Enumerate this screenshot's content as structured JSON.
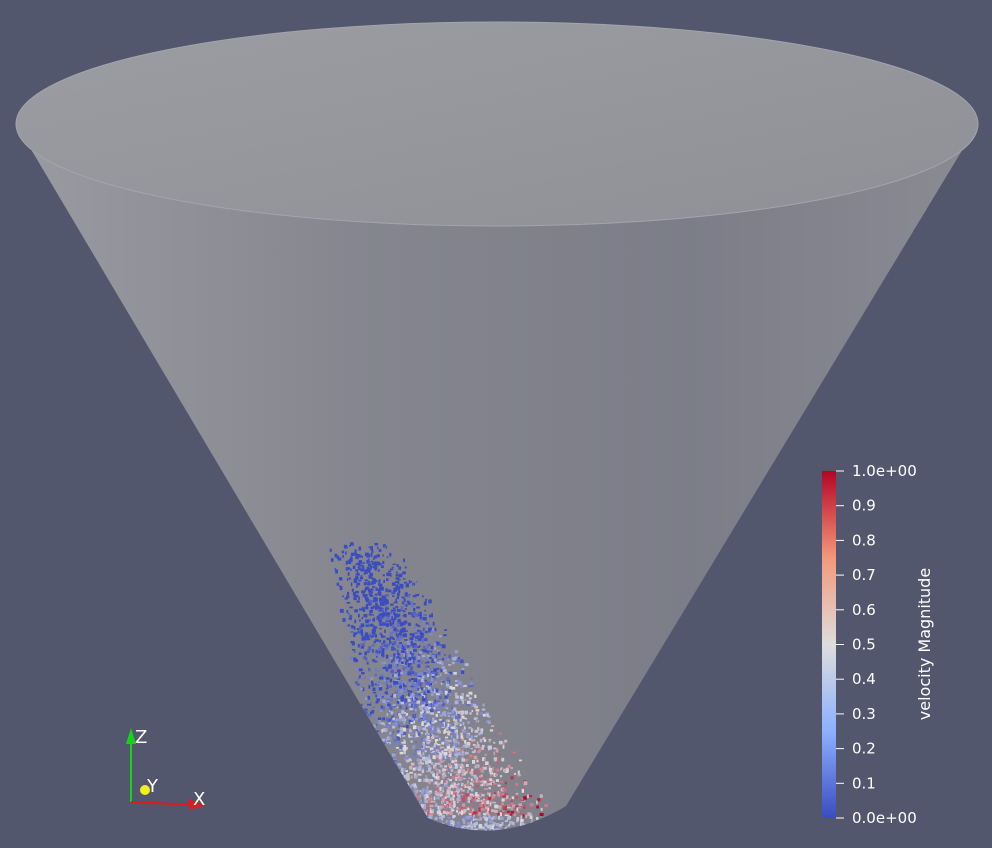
{
  "background_color": "#52576e",
  "scene": {
    "object": "cone-surface",
    "surface_color": "#8c8d96",
    "rim_color": "#95969c"
  },
  "scalar_bar": {
    "title": "velocity Magnitude",
    "colormap": "Cool to Warm",
    "color_low": "#3b4cc0",
    "color_mid": "#dddddd",
    "color_high": "#b40426",
    "range": [
      0,
      1
    ],
    "ticks": [
      {
        "value": 1.0,
        "label": "1.0e+00"
      },
      {
        "value": 0.9,
        "label": "0.9"
      },
      {
        "value": 0.8,
        "label": "0.8"
      },
      {
        "value": 0.7,
        "label": "0.7"
      },
      {
        "value": 0.6,
        "label": "0.6"
      },
      {
        "value": 0.5,
        "label": "0.5"
      },
      {
        "value": 0.4,
        "label": "0.4"
      },
      {
        "value": 0.3,
        "label": "0.3"
      },
      {
        "value": 0.2,
        "label": "0.2"
      },
      {
        "value": 0.1,
        "label": "0.1"
      },
      {
        "value": 0.0,
        "label": "0.0e+00"
      }
    ]
  },
  "orientation_axes": {
    "x_label": "X",
    "y_label": "Y",
    "z_label": "Z",
    "x_color": "#e0191c",
    "y_color": "#f1f11a",
    "z_color": "#19d119"
  }
}
